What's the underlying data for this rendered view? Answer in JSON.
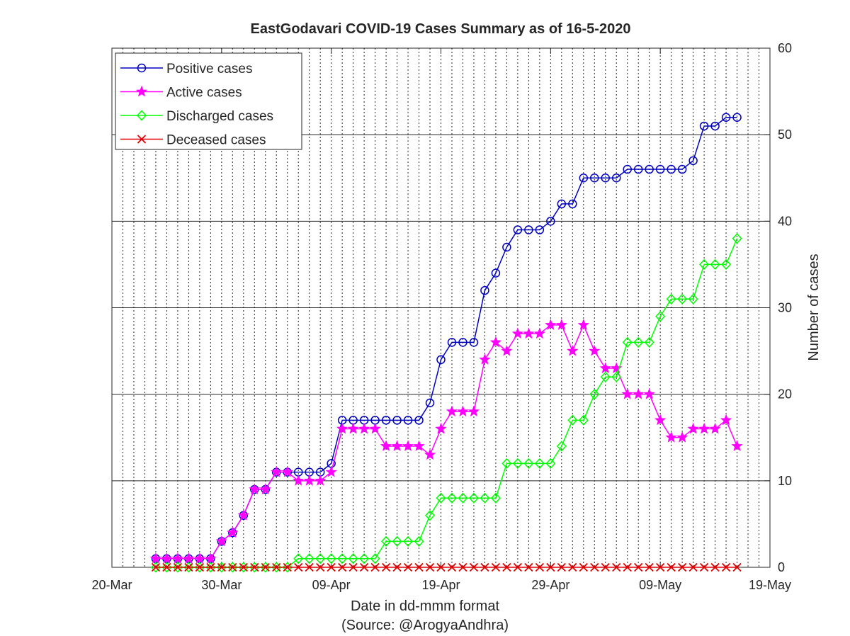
{
  "chart_data": {
    "type": "line",
    "title": "EastGodavari COVID-19 Cases Summary as of 16-5-2020",
    "xlabel": "Date in dd-mmm format",
    "source": "(Source: @ArogyaAndhra)",
    "ylabel": "Number of cases",
    "x_ticks": [
      "20-Mar",
      "30-Mar",
      "09-Apr",
      "19-Apr",
      "29-Apr",
      "09-May",
      "19-May"
    ],
    "y_ticks": [
      "0",
      "10",
      "20",
      "30",
      "40",
      "50",
      "60"
    ],
    "xlim": [
      "2020-03-20",
      "2020-05-19"
    ],
    "ylim": [
      0,
      60
    ],
    "grid": "vertical dotted daily, horizontal solid at tick values",
    "legend_position": "top-left",
    "x": [
      "2020-03-24",
      "2020-03-25",
      "2020-03-26",
      "2020-03-27",
      "2020-03-28",
      "2020-03-29",
      "2020-03-30",
      "2020-03-31",
      "2020-04-01",
      "2020-04-02",
      "2020-04-03",
      "2020-04-04",
      "2020-04-05",
      "2020-04-06",
      "2020-04-07",
      "2020-04-08",
      "2020-04-09",
      "2020-04-10",
      "2020-04-11",
      "2020-04-12",
      "2020-04-13",
      "2020-04-14",
      "2020-04-15",
      "2020-04-16",
      "2020-04-17",
      "2020-04-18",
      "2020-04-19",
      "2020-04-20",
      "2020-04-21",
      "2020-04-22",
      "2020-04-23",
      "2020-04-24",
      "2020-04-25",
      "2020-04-26",
      "2020-04-27",
      "2020-04-28",
      "2020-04-29",
      "2020-04-30",
      "2020-05-01",
      "2020-05-02",
      "2020-05-03",
      "2020-05-04",
      "2020-05-05",
      "2020-05-06",
      "2020-05-07",
      "2020-05-08",
      "2020-05-09",
      "2020-05-10",
      "2020-05-11",
      "2020-05-12",
      "2020-05-13",
      "2020-05-14",
      "2020-05-15",
      "2020-05-16"
    ],
    "series": [
      {
        "name": "Positive cases",
        "color": "#0000c0",
        "marker": "circle",
        "values": [
          1,
          1,
          1,
          1,
          1,
          1,
          3,
          4,
          6,
          9,
          9,
          11,
          11,
          11,
          11,
          11,
          12,
          17,
          17,
          17,
          17,
          17,
          17,
          17,
          17,
          19,
          24,
          26,
          26,
          26,
          32,
          34,
          37,
          39,
          39,
          39,
          40,
          42,
          42,
          45,
          45,
          45,
          45,
          46,
          46,
          46,
          46,
          46,
          46,
          47,
          51,
          51,
          52,
          52
        ]
      },
      {
        "name": "Active cases",
        "color": "#ff00ff",
        "marker": "star",
        "values": [
          1,
          1,
          1,
          1,
          1,
          1,
          3,
          4,
          6,
          9,
          9,
          11,
          11,
          10,
          10,
          10,
          11,
          16,
          16,
          16,
          16,
          14,
          14,
          14,
          14,
          13,
          16,
          18,
          18,
          18,
          24,
          26,
          25,
          27,
          27,
          27,
          28,
          28,
          25,
          28,
          25,
          23,
          23,
          20,
          20,
          20,
          17,
          15,
          15,
          16,
          16,
          16,
          17,
          14
        ]
      },
      {
        "name": "Discharged cases",
        "color": "#00ff00",
        "marker": "diamond",
        "values": [
          0,
          0,
          0,
          0,
          0,
          0,
          0,
          0,
          0,
          0,
          0,
          0,
          0,
          1,
          1,
          1,
          1,
          1,
          1,
          1,
          1,
          3,
          3,
          3,
          3,
          6,
          8,
          8,
          8,
          8,
          8,
          8,
          12,
          12,
          12,
          12,
          12,
          14,
          17,
          17,
          20,
          22,
          22,
          26,
          26,
          26,
          29,
          31,
          31,
          31,
          35,
          35,
          35,
          38
        ]
      },
      {
        "name": "Deceased cases",
        "color": "#e00000",
        "marker": "x",
        "values": [
          0,
          0,
          0,
          0,
          0,
          0,
          0,
          0,
          0,
          0,
          0,
          0,
          0,
          0,
          0,
          0,
          0,
          0,
          0,
          0,
          0,
          0,
          0,
          0,
          0,
          0,
          0,
          0,
          0,
          0,
          0,
          0,
          0,
          0,
          0,
          0,
          0,
          0,
          0,
          0,
          0,
          0,
          0,
          0,
          0,
          0,
          0,
          0,
          0,
          0,
          0,
          0,
          0,
          0
        ]
      }
    ]
  }
}
